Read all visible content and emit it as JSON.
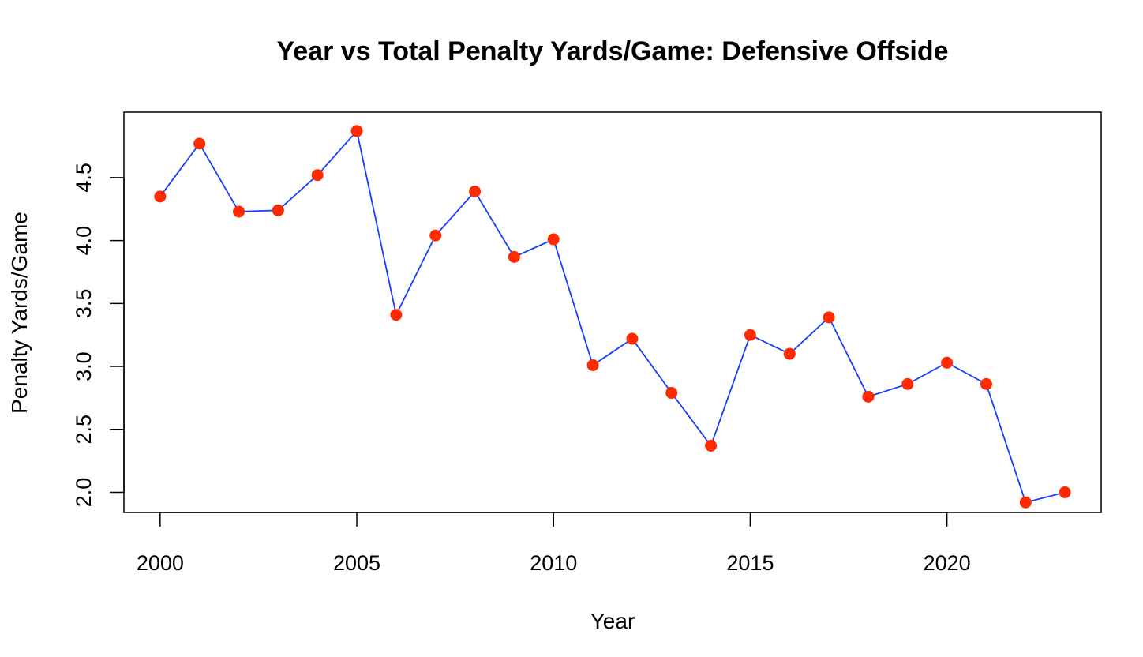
{
  "chart_data": {
    "type": "line",
    "title": "Year vs Total Penalty Yards/Game: Defensive Offside",
    "xlabel": "Year",
    "ylabel": "Penalty Yards/Game",
    "x": [
      2000,
      2001,
      2002,
      2003,
      2004,
      2005,
      2006,
      2007,
      2008,
      2009,
      2010,
      2011,
      2012,
      2013,
      2014,
      2015,
      2016,
      2017,
      2018,
      2019,
      2020,
      2021,
      2022,
      2023
    ],
    "series": [
      {
        "values": [
          4.35,
          4.77,
          4.23,
          4.24,
          4.52,
          4.87,
          3.41,
          4.04,
          4.39,
          3.87,
          4.01,
          3.01,
          3.22,
          2.79,
          2.37,
          3.25,
          3.1,
          3.39,
          2.76,
          2.86,
          3.03,
          2.86,
          1.92,
          2.0
        ],
        "line_color": "#1a3cff",
        "marker_color": "#ff2a00"
      }
    ],
    "x_ticks": [
      "2000",
      "2005",
      "2010",
      "2015",
      "2020"
    ],
    "y_ticks": [
      "2.0",
      "2.5",
      "3.0",
      "3.5",
      "4.0",
      "4.5"
    ],
    "xlim": [
      1999.08,
      2023.92
    ],
    "ylim": [
      1.84,
      5.02
    ],
    "grid": false,
    "legend": "none"
  }
}
